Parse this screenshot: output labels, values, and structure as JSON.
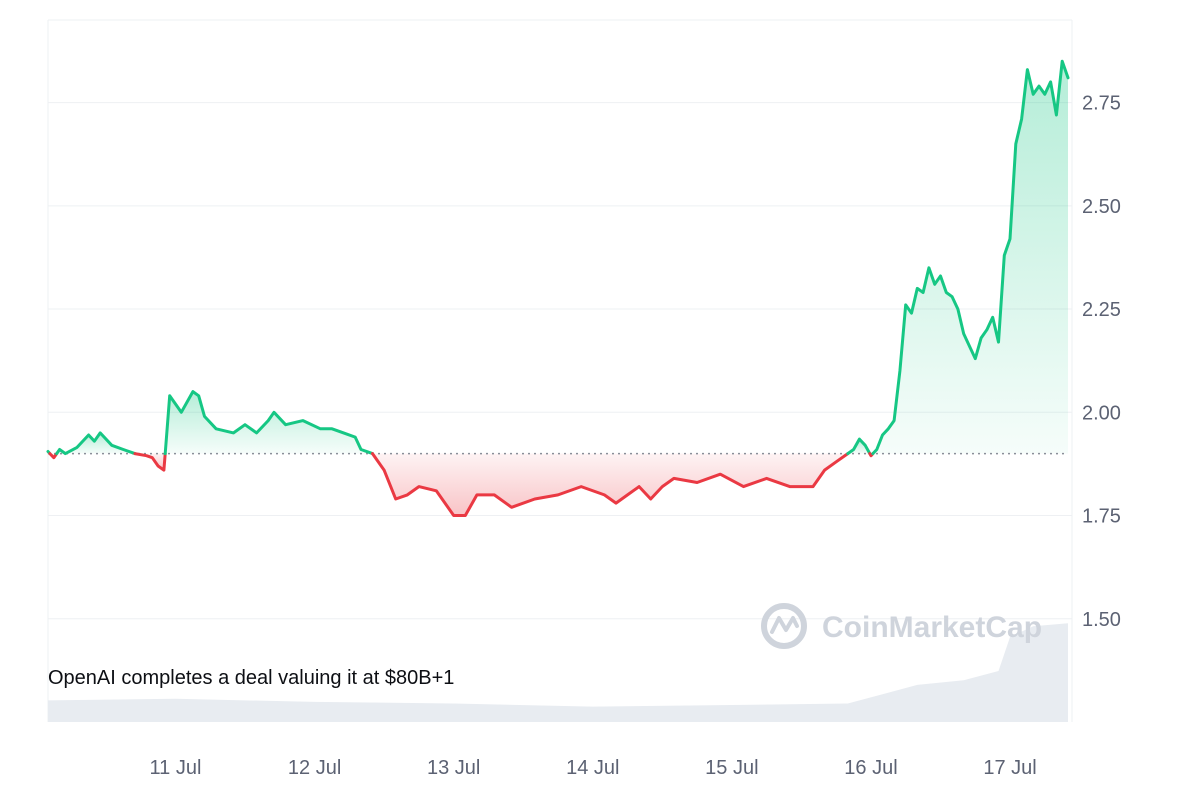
{
  "chart_data": {
    "type": "area",
    "baseline": 1.9,
    "ylim": [
      1.25,
      2.95
    ],
    "xlim": [
      "2024-07-10T02:00",
      "2024-07-17T10:00"
    ],
    "y_ticks": [
      1.5,
      1.75,
      2.0,
      2.25,
      2.5,
      2.75
    ],
    "y_tick_labels": [
      "1.50",
      "1.75",
      "2.00",
      "2.25",
      "2.50",
      "2.75"
    ],
    "x_ticks": [
      "2024-07-11",
      "2024-07-12",
      "2024-07-13",
      "2024-07-14",
      "2024-07-15",
      "2024-07-16",
      "2024-07-17"
    ],
    "x_tick_labels": [
      "11 Jul",
      "12 Jul",
      "13 Jul",
      "14 Jul",
      "15 Jul",
      "16 Jul",
      "17 Jul"
    ],
    "grid": true,
    "colors": {
      "up": "#16c784",
      "down": "#ea3943",
      "up_fill": "#16c784",
      "down_fill": "#ea3943",
      "volume": "#e8ecf1",
      "grid": "#eef0f3",
      "baseline": "#8a8f99"
    },
    "series": [
      {
        "points": [
          [
            "2024-07-10T02:00",
            1.905
          ],
          [
            "2024-07-10T03:00",
            1.89
          ],
          [
            "2024-07-10T04:00",
            1.91
          ],
          [
            "2024-07-10T05:00",
            1.9
          ],
          [
            "2024-07-10T07:00",
            1.915
          ],
          [
            "2024-07-10T09:00",
            1.945
          ],
          [
            "2024-07-10T10:00",
            1.93
          ],
          [
            "2024-07-10T11:00",
            1.95
          ],
          [
            "2024-07-10T13:00",
            1.92
          ],
          [
            "2024-07-10T15:00",
            1.91
          ],
          [
            "2024-07-10T17:00",
            1.9
          ],
          [
            "2024-07-10T19:00",
            1.895
          ],
          [
            "2024-07-10T20:00",
            1.89
          ],
          [
            "2024-07-10T21:00",
            1.87
          ],
          [
            "2024-07-10T22:00",
            1.86
          ],
          [
            "2024-07-10T23:00",
            2.04
          ],
          [
            "2024-07-11T01:00",
            2.0
          ],
          [
            "2024-07-11T03:00",
            2.05
          ],
          [
            "2024-07-11T04:00",
            2.04
          ],
          [
            "2024-07-11T05:00",
            1.99
          ],
          [
            "2024-07-11T07:00",
            1.96
          ],
          [
            "2024-07-11T10:00",
            1.95
          ],
          [
            "2024-07-11T12:00",
            1.97
          ],
          [
            "2024-07-11T14:00",
            1.95
          ],
          [
            "2024-07-11T16:00",
            1.98
          ],
          [
            "2024-07-11T17:00",
            2.0
          ],
          [
            "2024-07-11T19:00",
            1.97
          ],
          [
            "2024-07-11T22:00",
            1.98
          ],
          [
            "2024-07-12T01:00",
            1.96
          ],
          [
            "2024-07-12T03:00",
            1.96
          ],
          [
            "2024-07-12T05:00",
            1.95
          ],
          [
            "2024-07-12T07:00",
            1.94
          ],
          [
            "2024-07-12T08:00",
            1.91
          ],
          [
            "2024-07-12T10:00",
            1.9
          ],
          [
            "2024-07-12T12:00",
            1.86
          ],
          [
            "2024-07-12T14:00",
            1.79
          ],
          [
            "2024-07-12T16:00",
            1.8
          ],
          [
            "2024-07-12T18:00",
            1.82
          ],
          [
            "2024-07-12T21:00",
            1.81
          ],
          [
            "2024-07-13T00:00",
            1.75
          ],
          [
            "2024-07-13T02:00",
            1.75
          ],
          [
            "2024-07-13T04:00",
            1.8
          ],
          [
            "2024-07-13T07:00",
            1.8
          ],
          [
            "2024-07-13T10:00",
            1.77
          ],
          [
            "2024-07-13T14:00",
            1.79
          ],
          [
            "2024-07-13T18:00",
            1.8
          ],
          [
            "2024-07-13T22:00",
            1.82
          ],
          [
            "2024-07-14T02:00",
            1.8
          ],
          [
            "2024-07-14T04:00",
            1.78
          ],
          [
            "2024-07-14T06:00",
            1.8
          ],
          [
            "2024-07-14T08:00",
            1.82
          ],
          [
            "2024-07-14T10:00",
            1.79
          ],
          [
            "2024-07-14T12:00",
            1.82
          ],
          [
            "2024-07-14T14:00",
            1.84
          ],
          [
            "2024-07-14T18:00",
            1.83
          ],
          [
            "2024-07-14T22:00",
            1.85
          ],
          [
            "2024-07-15T02:00",
            1.82
          ],
          [
            "2024-07-15T06:00",
            1.84
          ],
          [
            "2024-07-15T10:00",
            1.82
          ],
          [
            "2024-07-15T14:00",
            1.82
          ],
          [
            "2024-07-15T16:00",
            1.86
          ],
          [
            "2024-07-15T18:00",
            1.88
          ],
          [
            "2024-07-15T20:00",
            1.9
          ],
          [
            "2024-07-15T21:00",
            1.91
          ],
          [
            "2024-07-15T22:00",
            1.935
          ],
          [
            "2024-07-15T23:00",
            1.92
          ],
          [
            "2024-07-16T00:00",
            1.895
          ],
          [
            "2024-07-16T01:00",
            1.91
          ],
          [
            "2024-07-16T02:00",
            1.945
          ],
          [
            "2024-07-16T03:00",
            1.96
          ],
          [
            "2024-07-16T04:00",
            1.98
          ],
          [
            "2024-07-16T05:00",
            2.1
          ],
          [
            "2024-07-16T06:00",
            2.26
          ],
          [
            "2024-07-16T07:00",
            2.24
          ],
          [
            "2024-07-16T08:00",
            2.3
          ],
          [
            "2024-07-16T09:00",
            2.29
          ],
          [
            "2024-07-16T10:00",
            2.35
          ],
          [
            "2024-07-16T11:00",
            2.31
          ],
          [
            "2024-07-16T12:00",
            2.33
          ],
          [
            "2024-07-16T13:00",
            2.29
          ],
          [
            "2024-07-16T14:00",
            2.28
          ],
          [
            "2024-07-16T15:00",
            2.25
          ],
          [
            "2024-07-16T16:00",
            2.19
          ],
          [
            "2024-07-16T17:00",
            2.16
          ],
          [
            "2024-07-16T18:00",
            2.13
          ],
          [
            "2024-07-16T19:00",
            2.18
          ],
          [
            "2024-07-16T20:00",
            2.2
          ],
          [
            "2024-07-16T21:00",
            2.23
          ],
          [
            "2024-07-16T22:00",
            2.17
          ],
          [
            "2024-07-16T23:00",
            2.38
          ],
          [
            "2024-07-17T00:00",
            2.42
          ],
          [
            "2024-07-17T01:00",
            2.65
          ],
          [
            "2024-07-17T02:00",
            2.71
          ],
          [
            "2024-07-17T03:00",
            2.83
          ],
          [
            "2024-07-17T04:00",
            2.77
          ],
          [
            "2024-07-17T05:00",
            2.79
          ],
          [
            "2024-07-17T06:00",
            2.77
          ],
          [
            "2024-07-17T07:00",
            2.8
          ],
          [
            "2024-07-17T08:00",
            2.72
          ],
          [
            "2024-07-17T09:00",
            2.85
          ],
          [
            "2024-07-17T10:00",
            2.81
          ]
        ]
      }
    ],
    "volume": [
      [
        "2024-07-10T02:00",
        0.14
      ],
      [
        "2024-07-11T00:00",
        0.15
      ],
      [
        "2024-07-12T00:00",
        0.13
      ],
      [
        "2024-07-13T00:00",
        0.12
      ],
      [
        "2024-07-14T00:00",
        0.1
      ],
      [
        "2024-07-15T00:00",
        0.11
      ],
      [
        "2024-07-15T20:00",
        0.12
      ],
      [
        "2024-07-16T04:00",
        0.2
      ],
      [
        "2024-07-16T08:00",
        0.24
      ],
      [
        "2024-07-16T16:00",
        0.27
      ],
      [
        "2024-07-16T22:00",
        0.33
      ],
      [
        "2024-07-17T00:00",
        0.55
      ],
      [
        "2024-07-17T04:00",
        0.62
      ],
      [
        "2024-07-17T10:00",
        0.64
      ]
    ],
    "annotation": "OpenAI completes a deal valuing it at $80B+1",
    "watermark": "CoinMarketCap"
  }
}
